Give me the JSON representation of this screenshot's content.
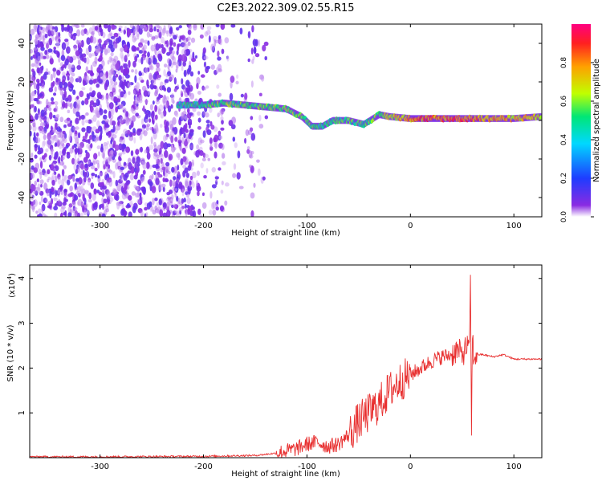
{
  "title": "C2E3.2022.309.02.55.R15",
  "top": {
    "xlabel": "Height of straight line (km)",
    "ylabel": "Frequency (Hz)",
    "xlim": [
      -368,
      127
    ],
    "ylim": [
      -50,
      50
    ],
    "xticks": [
      -300,
      -200,
      -100,
      0,
      100
    ],
    "yticks": [
      -40,
      -20,
      0,
      20,
      40
    ]
  },
  "colorbar": {
    "label": "Normalized spectral amplitude",
    "range": [
      0,
      1
    ],
    "ticks": [
      "0.0",
      "0.2",
      "0.4",
      "0.6",
      "0.8"
    ],
    "tick_values": [
      0.0,
      0.2,
      0.4,
      0.6,
      0.8
    ],
    "colors": [
      "#ffffff",
      "#8a2be2",
      "#1e3cff",
      "#00d8ff",
      "#00e676",
      "#c0ff00",
      "#ffa000",
      "#ff2020",
      "#ff0080"
    ]
  },
  "bottom": {
    "xlabel": "Height of straight line (km)",
    "ylabel": "SNR (10 * v/v)",
    "exponent": "(x10",
    "exponent_power": "4",
    "exponent_close": ")",
    "xlim": [
      -368,
      127
    ],
    "ylim": [
      0,
      4.3
    ],
    "xticks": [
      -300,
      -200,
      -100,
      0,
      100
    ],
    "yticks": [
      1,
      2,
      3,
      4
    ],
    "line_color": "#e83030"
  },
  "chart_data": [
    {
      "type": "heatmap",
      "title": "C2E3.2022.309.02.55.R15",
      "xlabel": "Height of straight line (km)",
      "ylabel": "Frequency (Hz)",
      "xlim": [
        -368,
        127
      ],
      "ylim": [
        -50,
        50
      ],
      "colorbar_label": "Normalized spectral amplitude",
      "ridge": {
        "x": [
          -225,
          -200,
          -180,
          -160,
          -140,
          -120,
          -105,
          -95,
          -85,
          -75,
          -60,
          -45,
          -30,
          -20,
          0,
          20,
          40,
          60,
          80,
          100,
          127
        ],
        "freq_hz": [
          8,
          8,
          9,
          8,
          7,
          6,
          2,
          -3,
          -3,
          0,
          0,
          -2,
          3,
          2,
          1,
          1,
          1,
          1,
          1,
          1,
          2
        ],
        "amplitude": [
          0.5,
          0.55,
          0.6,
          0.55,
          0.6,
          0.6,
          0.6,
          0.55,
          0.5,
          0.55,
          0.55,
          0.55,
          0.6,
          0.7,
          0.8,
          0.85,
          0.85,
          0.85,
          0.8,
          0.75,
          0.7
        ]
      }
    },
    {
      "type": "line",
      "xlabel": "Height of straight line (km)",
      "ylabel": "SNR (10 * v/v)",
      "y_multiplier": 10000,
      "xlim": [
        -368,
        127
      ],
      "ylim": [
        0,
        4.3
      ],
      "x": [
        -368,
        -300,
        -200,
        -150,
        -130,
        -110,
        -100,
        -90,
        -80,
        -70,
        -60,
        -50,
        -40,
        -30,
        -20,
        -10,
        0,
        10,
        20,
        30,
        40,
        45,
        50,
        55,
        57,
        58,
        59,
        60,
        61,
        62,
        63,
        70,
        80,
        90,
        100,
        110,
        127
      ],
      "y": [
        0.02,
        0.02,
        0.03,
        0.05,
        0.1,
        0.2,
        0.3,
        0.35,
        0.25,
        0.3,
        0.5,
        0.8,
        1.0,
        1.2,
        1.5,
        1.7,
        1.85,
        2.0,
        2.15,
        2.25,
        2.3,
        2.4,
        2.3,
        2.5,
        2.3,
        4.2,
        0.4,
        2.9,
        2.1,
        2.3,
        2.3,
        2.3,
        2.25,
        2.3,
        2.2,
        2.2,
        2.2
      ]
    }
  ]
}
